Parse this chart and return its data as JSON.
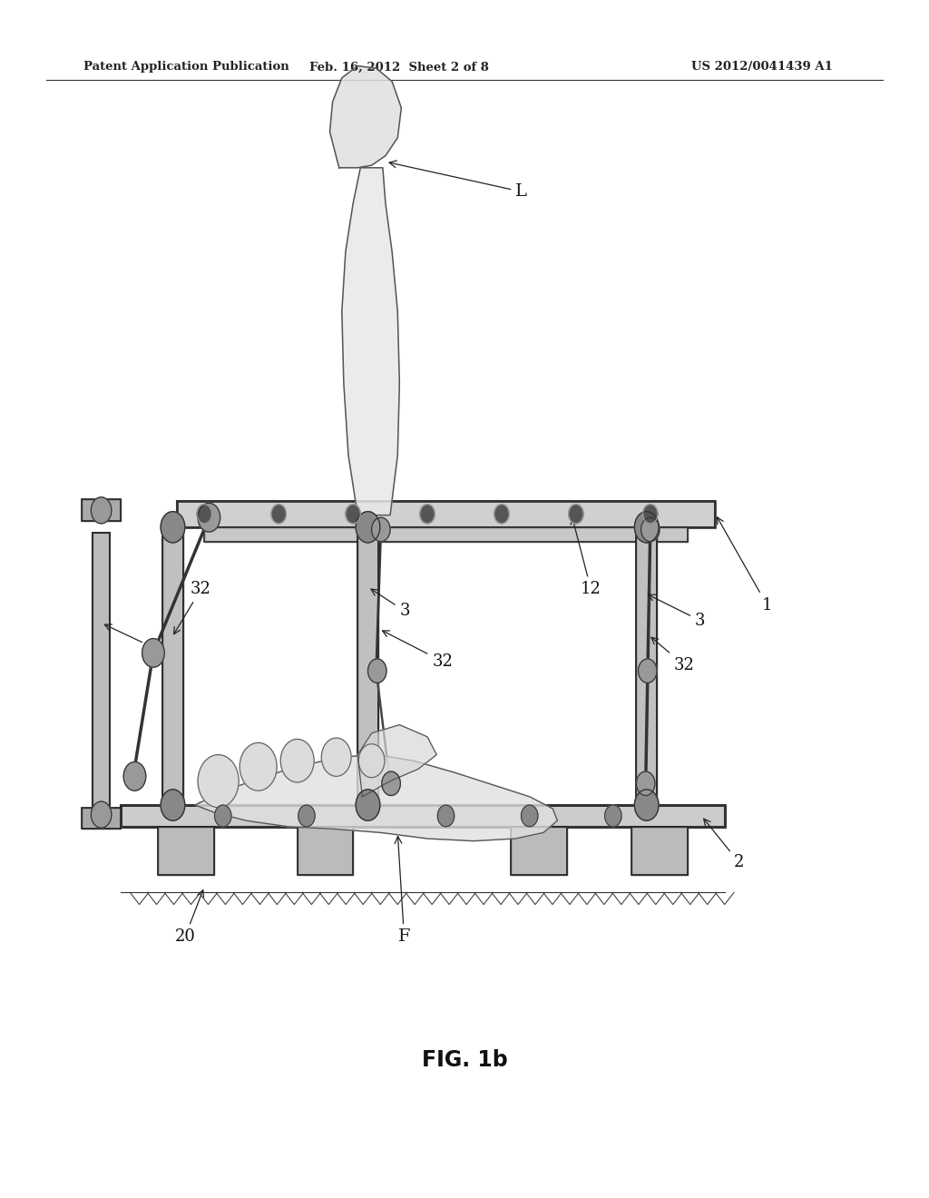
{
  "bg_color": "#ffffff",
  "header_left": "Patent Application Publication",
  "header_center": "Feb. 16, 2012  Sheet 2 of 8",
  "header_right": "US 2012/0041439 A1",
  "figure_label": "FIG. 1b"
}
